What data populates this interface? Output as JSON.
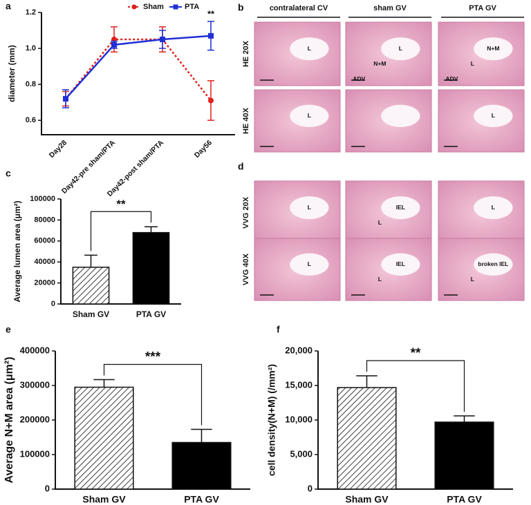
{
  "chart_data": [
    {
      "type": "line",
      "label": "a",
      "ylabel": "diameter (mm)",
      "annotation": "**",
      "categories": [
        "Day28",
        "Day42-pre sham/PTA",
        "Day42-post sham/PTA",
        "Day56"
      ],
      "series": [
        {
          "name": "Sham",
          "color": "#e0201b",
          "dash": true,
          "values": [
            0.72,
            1.05,
            1.05,
            0.71
          ],
          "errors": [
            0.04,
            0.07,
            0.07,
            0.11
          ]
        },
        {
          "name": "PTA",
          "color": "#1f2fd6",
          "dash": false,
          "values": [
            0.72,
            1.02,
            1.05,
            1.07
          ],
          "errors": [
            0.05,
            0.02,
            0.05,
            0.08
          ]
        }
      ],
      "ylim": [
        0.52,
        1.2
      ],
      "yticks": [
        0.6,
        0.8,
        {
          "value": 1,
          "label": "1.0"
        },
        1.2
      ]
    },
    {
      "type": "bar",
      "label": "c",
      "ylabel": "Average lumen area (μm²)",
      "significance": "**",
      "categories": [
        "Sham GV",
        "PTA GV"
      ],
      "values": [
        35000,
        68000
      ],
      "errors": [
        11500,
        5500
      ],
      "fills": [
        "hatched",
        "#000000"
      ],
      "ylim": [
        0,
        100000
      ],
      "yticks": [
        0,
        20000,
        40000,
        60000,
        80000,
        100000
      ]
    },
    {
      "type": "bar",
      "label": "e",
      "ylabel": "Average N+M area (μm²)",
      "significance": "***",
      "categories": [
        "Sham GV",
        "PTA GV"
      ],
      "values": [
        295000,
        135000
      ],
      "errors": [
        22000,
        38000
      ],
      "fills": [
        "hatched",
        "#000000"
      ],
      "ylim": [
        0,
        400000
      ],
      "yticks": [
        0,
        100000,
        200000,
        300000,
        400000
      ]
    },
    {
      "type": "bar",
      "label": "f",
      "ylabel": "cell density(N+M) (/mm²)",
      "significance": "**",
      "categories": [
        "Sham GV",
        "PTA GV"
      ],
      "values": [
        14700,
        9700
      ],
      "errors": [
        1700,
        900
      ],
      "fills": [
        "hatched",
        "#000000"
      ],
      "ylim": [
        0,
        20000
      ],
      "yticks": [
        0,
        {
          "value": 5000,
          "label": "5,000"
        },
        {
          "value": 10000,
          "label": "10,000"
        },
        {
          "value": 15000,
          "label": "15,000"
        },
        {
          "value": 20000,
          "label": "20,000"
        }
      ]
    }
  ],
  "image_panels": [
    {
      "label": "b",
      "columns": [
        "contralateral CV",
        "sham GV",
        "PTA GV"
      ],
      "rows": [
        "HE 20X",
        "HE 40X"
      ],
      "cells": [
        [
          [
            "L"
          ],
          [
            "L",
            "N+M",
            "ADV"
          ],
          [
            "N+M",
            "L",
            "ADV"
          ]
        ],
        [
          [
            "L"
          ],
          [],
          [
            "L"
          ]
        ]
      ]
    },
    {
      "label": "d",
      "rows": [
        "VVG 20X",
        "VVG 40X"
      ],
      "cells": [
        [
          [
            "L"
          ],
          [
            "IEL",
            "L"
          ],
          [
            "L"
          ]
        ],
        [
          [
            "L"
          ],
          [
            "IEL",
            "L"
          ],
          [
            "broken IEL",
            "L"
          ]
        ]
      ]
    }
  ]
}
